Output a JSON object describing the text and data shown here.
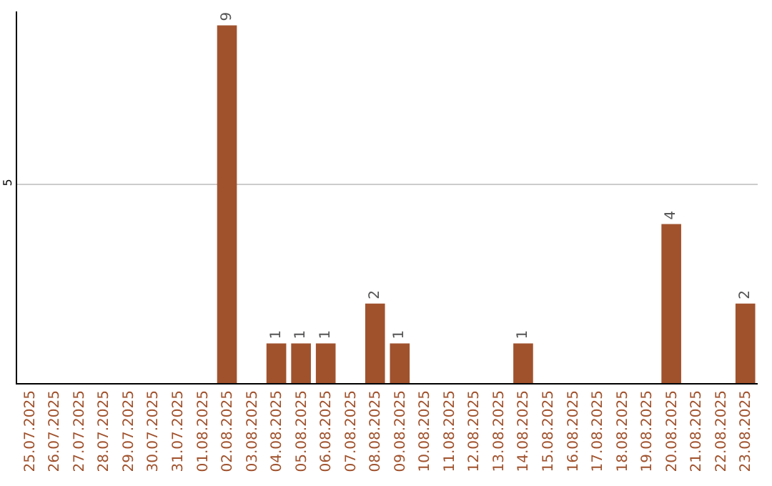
{
  "chart_data": {
    "type": "bar",
    "categories": [
      "25.07.2025",
      "26.07.2025",
      "27.07.2025",
      "28.07.2025",
      "29.07.2025",
      "30.07.2025",
      "31.07.2025",
      "01.08.2025",
      "02.08.2025",
      "03.08.2025",
      "04.08.2025",
      "05.08.2025",
      "06.08.2025",
      "07.08.2025",
      "08.08.2025",
      "09.08.2025",
      "10.08.2025",
      "11.08.2025",
      "12.08.2025",
      "13.08.2025",
      "14.08.2025",
      "15.08.2025",
      "16.08.2025",
      "17.08.2025",
      "18.08.2025",
      "19.08.2025",
      "20.08.2025",
      "21.08.2025",
      "22.08.2025",
      "23.08.2025"
    ],
    "values": [
      0,
      0,
      0,
      0,
      0,
      0,
      0,
      0,
      9,
      0,
      1,
      1,
      1,
      0,
      2,
      1,
      0,
      0,
      0,
      0,
      1,
      0,
      0,
      0,
      0,
      0,
      4,
      0,
      0,
      2
    ],
    "value_labels": [
      null,
      null,
      null,
      null,
      null,
      null,
      null,
      null,
      "9",
      null,
      "1",
      "1",
      "1",
      null,
      "2",
      "1",
      null,
      null,
      null,
      null,
      "1",
      null,
      null,
      null,
      null,
      null,
      "4",
      null,
      null,
      "2"
    ],
    "color": "#a0522d",
    "ylim": [
      0,
      9.35
    ],
    "yticks": [
      5
    ],
    "grid": "y"
  }
}
